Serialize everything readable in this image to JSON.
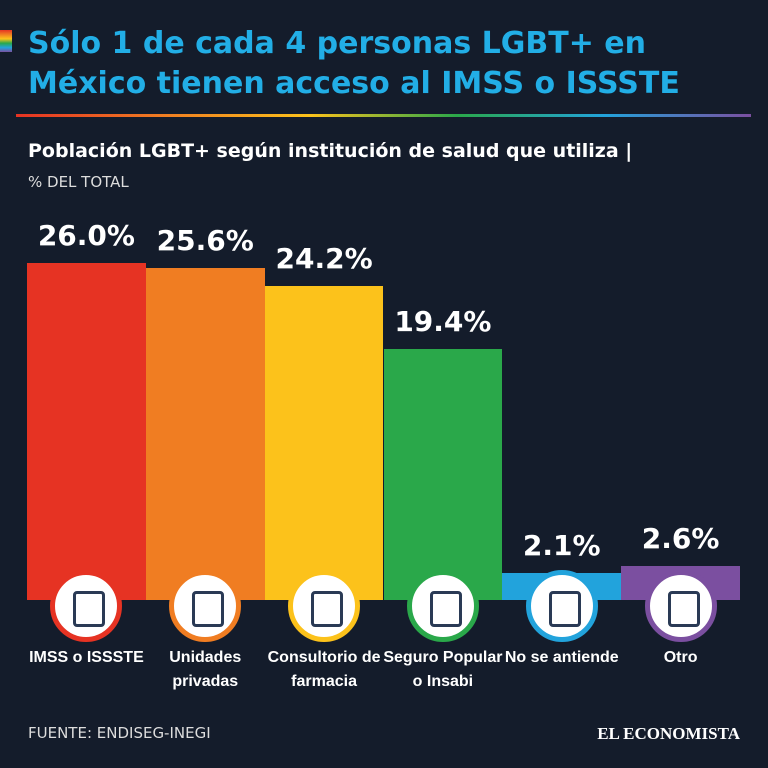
{
  "chart_data": {
    "type": "bar",
    "title": "Sólo 1 de cada 4 personas LGBT+ en México tienen acceso al IMSS o ISSSTE",
    "subtitle": "Población LGBT+ según institución de salud que utiliza |",
    "unit_label": "% DEL TOTAL",
    "categories": [
      "IMSS o ISSSTE",
      "Unidades privadas",
      "Consultorio de farmacia",
      "Seguro Popular o Insabi",
      "No se antiende",
      "Otro"
    ],
    "values": [
      26.0,
      25.6,
      24.2,
      19.4,
      2.1,
      2.6
    ],
    "value_labels": [
      "26.0%",
      "25.6%",
      "24.2%",
      "19.4%",
      "2.1%",
      "2.6%"
    ],
    "colors": [
      "#e63323",
      "#f07d22",
      "#fcc21b",
      "#2aa84a",
      "#22a3dc",
      "#7b4fa0"
    ],
    "source": "FUENTE: ENDISEG-INEGI",
    "brand": "EL ECONOMISTA"
  }
}
